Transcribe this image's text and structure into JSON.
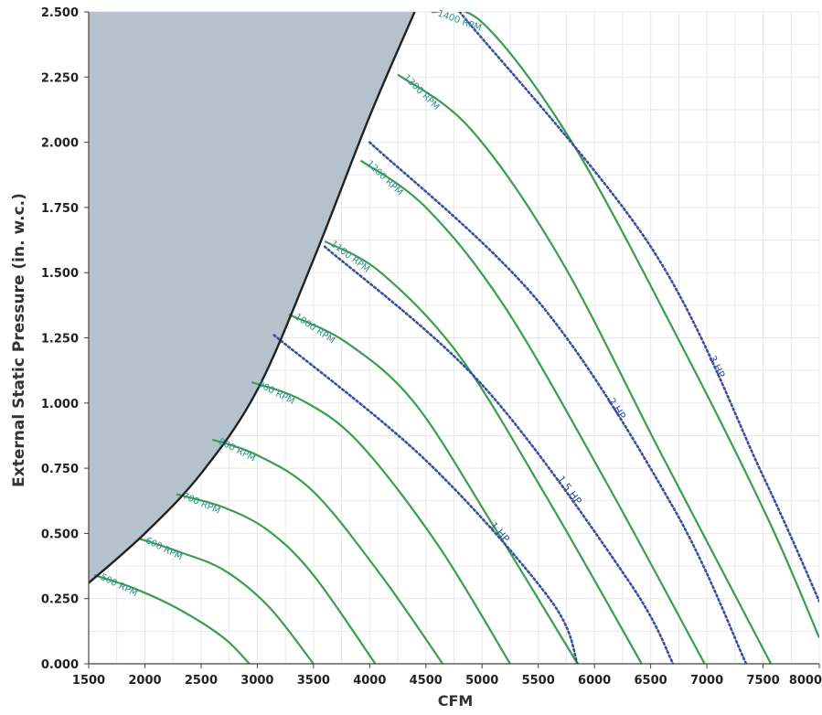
{
  "chart_data": {
    "type": "line",
    "title": "",
    "xlabel": "CFM",
    "ylabel": "External Static Pressure (in. w.c.)",
    "xlim": [
      1500,
      8000
    ],
    "ylim": [
      0,
      2.5
    ],
    "x_ticks": [
      "1500",
      "2000",
      "2500",
      "3000",
      "3500",
      "4000",
      "4500",
      "5000",
      "5500",
      "6000",
      "6500",
      "7000",
      "7500",
      "8000"
    ],
    "y_ticks": [
      "0.000",
      "0.250",
      "0.500",
      "0.750",
      "1.000",
      "1.250",
      "1.500",
      "1.750",
      "2.000",
      "2.250",
      "2.500"
    ],
    "grid": true,
    "colors": {
      "rpm": "#3a9f4c",
      "hp": "#3a4f9e",
      "limit": "#222222",
      "shade": "#b5c2cc"
    },
    "shaded_region": {
      "boundary": [
        [
          1500,
          0.31
        ],
        [
          2000,
          0.5
        ],
        [
          2500,
          0.73
        ],
        [
          3000,
          1.05
        ],
        [
          3500,
          1.55
        ],
        [
          4000,
          2.1
        ],
        [
          4400,
          2.5
        ]
      ]
    },
    "rpm_series": [
      {
        "name": "500 RPM",
        "points": [
          [
            1550,
            0.34
          ],
          [
            1900,
            0.29
          ],
          [
            2300,
            0.21
          ],
          [
            2700,
            0.1
          ],
          [
            2930,
            0.0
          ]
        ]
      },
      {
        "name": "600 RPM",
        "points": [
          [
            1950,
            0.48
          ],
          [
            2300,
            0.43
          ],
          [
            2700,
            0.36
          ],
          [
            3100,
            0.22
          ],
          [
            3500,
            0.0
          ]
        ]
      },
      {
        "name": "700 RPM",
        "points": [
          [
            2280,
            0.65
          ],
          [
            2700,
            0.6
          ],
          [
            3100,
            0.51
          ],
          [
            3500,
            0.34
          ],
          [
            4050,
            0.0
          ]
        ]
      },
      {
        "name": "800 RPM",
        "points": [
          [
            2600,
            0.86
          ],
          [
            3000,
            0.8
          ],
          [
            3500,
            0.66
          ],
          [
            4100,
            0.34
          ],
          [
            4650,
            0.0
          ]
        ]
      },
      {
        "name": "900 RPM",
        "points": [
          [
            2950,
            1.08
          ],
          [
            3400,
            1.01
          ],
          [
            3900,
            0.85
          ],
          [
            4600,
            0.46
          ],
          [
            5250,
            0.0
          ]
        ]
      },
      {
        "name": "1000 RPM",
        "points": [
          [
            3280,
            1.34
          ],
          [
            3800,
            1.23
          ],
          [
            4400,
            1.0
          ],
          [
            5100,
            0.53
          ],
          [
            5850,
            0.0
          ]
        ]
      },
      {
        "name": "1100 RPM",
        "points": [
          [
            3600,
            1.62
          ],
          [
            4100,
            1.5
          ],
          [
            4800,
            1.18
          ],
          [
            5600,
            0.62
          ],
          [
            6420,
            0.0
          ]
        ]
      },
      {
        "name": "1200 RPM",
        "points": [
          [
            3920,
            1.93
          ],
          [
            4500,
            1.75
          ],
          [
            5200,
            1.37
          ],
          [
            6100,
            0.7
          ],
          [
            6980,
            0.0
          ]
        ]
      },
      {
        "name": "1300 RPM",
        "points": [
          [
            4250,
            2.26
          ],
          [
            4900,
            2.05
          ],
          [
            5700,
            1.55
          ],
          [
            6600,
            0.8
          ],
          [
            7570,
            0.0
          ]
        ]
      },
      {
        "name": "1400 RPM",
        "points": [
          [
            4550,
            2.5
          ],
          [
            5000,
            2.46
          ],
          [
            5800,
            2.0
          ],
          [
            6800,
            1.2
          ],
          [
            7550,
            0.55
          ],
          [
            8000,
            0.1
          ]
        ]
      }
    ],
    "hp_series": [
      {
        "name": "1 HP",
        "points": [
          [
            3150,
            1.26
          ],
          [
            4500,
            0.78
          ],
          [
            5600,
            0.25
          ],
          [
            5850,
            0.0
          ]
        ]
      },
      {
        "name": "1.5 HP",
        "points": [
          [
            3600,
            1.6
          ],
          [
            5000,
            1.07
          ],
          [
            6300,
            0.32
          ],
          [
            6700,
            0.0
          ]
        ]
      },
      {
        "name": "2 HP",
        "points": [
          [
            4000,
            2.0
          ],
          [
            5500,
            1.39
          ],
          [
            6700,
            0.6
          ],
          [
            7350,
            0.0
          ]
        ]
      },
      {
        "name": "3 HP",
        "points": [
          [
            4800,
            2.5
          ],
          [
            6500,
            1.6
          ],
          [
            7500,
            0.72
          ],
          [
            8000,
            0.24
          ]
        ]
      }
    ]
  }
}
